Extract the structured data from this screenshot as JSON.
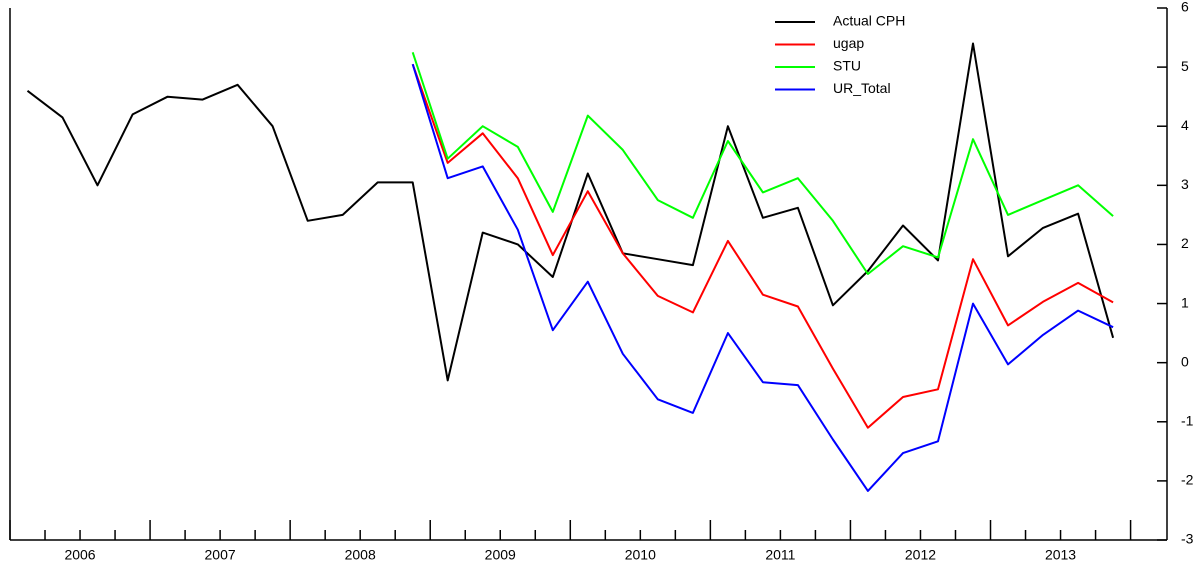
{
  "chart_data": {
    "type": "line",
    "x": [
      2006.125,
      2006.375,
      2006.625,
      2006.875,
      2007.125,
      2007.375,
      2007.625,
      2007.875,
      2008.125,
      2008.375,
      2008.625,
      2008.875,
      2009.125,
      2009.375,
      2009.625,
      2009.875,
      2010.125,
      2010.375,
      2010.625,
      2010.875,
      2011.125,
      2011.375,
      2011.625,
      2011.875,
      2012.125,
      2012.375,
      2012.625,
      2012.875,
      2013.125,
      2013.375,
      2013.625,
      2013.875
    ],
    "series": [
      {
        "name": "Actual CPH",
        "color": "#000000",
        "values": [
          4.6,
          4.15,
          3.0,
          4.2,
          4.5,
          4.45,
          4.7,
          4.0,
          2.4,
          2.5,
          3.05,
          3.05,
          -0.3,
          2.2,
          2.0,
          1.45,
          3.2,
          1.85,
          1.75,
          1.65,
          4.0,
          2.45,
          2.62,
          0.97,
          1.55,
          2.32,
          1.73,
          5.4,
          1.8,
          2.28,
          2.52,
          0.42
        ]
      },
      {
        "name": "ugap",
        "color": "#ff0000",
        "values": [
          null,
          null,
          null,
          null,
          null,
          null,
          null,
          null,
          null,
          null,
          null,
          5.05,
          3.38,
          3.88,
          3.12,
          1.82,
          2.9,
          1.85,
          1.13,
          0.85,
          2.06,
          1.15,
          0.95,
          -0.1,
          -1.1,
          -0.58,
          -0.45,
          1.75,
          0.63,
          1.03,
          1.35,
          1.02
        ]
      },
      {
        "name": "STU",
        "color": "#00ff00",
        "values": [
          null,
          null,
          null,
          null,
          null,
          null,
          null,
          null,
          null,
          null,
          null,
          5.25,
          3.45,
          4.0,
          3.65,
          2.55,
          4.18,
          3.6,
          2.75,
          2.45,
          3.75,
          2.88,
          3.12,
          2.4,
          1.5,
          1.97,
          1.78,
          3.78,
          2.5,
          2.75,
          3.0,
          2.48
        ]
      },
      {
        "name": "UR_Total",
        "color": "#0000ff",
        "values": [
          null,
          null,
          null,
          null,
          null,
          null,
          null,
          null,
          null,
          null,
          null,
          5.05,
          3.12,
          3.32,
          2.25,
          0.55,
          1.37,
          0.15,
          -0.62,
          -0.85,
          0.5,
          -0.33,
          -0.38,
          -1.3,
          -2.17,
          -1.53,
          -1.33,
          1.0,
          -0.03,
          0.47,
          0.88,
          0.6
        ]
      }
    ],
    "xlim": [
      2006,
      2014.26
    ],
    "xticks": [
      {
        "value": 2006.5,
        "label": "2006"
      },
      {
        "value": 2007.5,
        "label": "2007"
      },
      {
        "value": 2008.5,
        "label": "2008"
      },
      {
        "value": 2009.5,
        "label": "2009"
      },
      {
        "value": 2010.5,
        "label": "2010"
      },
      {
        "value": 2011.5,
        "label": "2011"
      },
      {
        "value": 2012.5,
        "label": "2012"
      },
      {
        "value": 2013.5,
        "label": "2013"
      }
    ],
    "ylim": [
      -3,
      6
    ],
    "yticks": [
      -3,
      -2,
      -1,
      0,
      1,
      2,
      3,
      4,
      5,
      6
    ],
    "legend": "upper right"
  }
}
